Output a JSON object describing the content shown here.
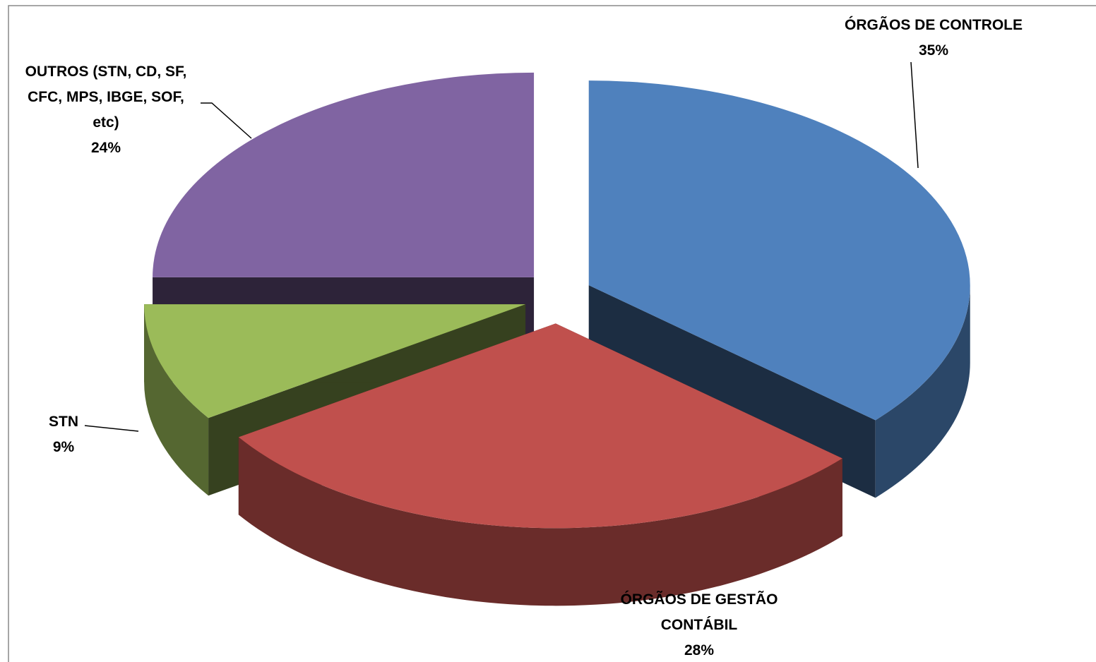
{
  "chart_data": {
    "type": "pie",
    "categories": [
      "ÓRGÃOS DE CONTROLE",
      "ÓRGÃOS DE GESTÃO CONTÁBIL",
      "STN",
      "OUTROS (STN, CD, SF, CFC, MPS, IBGE, SOF, etc)"
    ],
    "values": [
      35,
      28,
      9,
      24
    ],
    "value_labels": [
      "35%",
      "28%",
      "9%",
      "24%"
    ],
    "colors": [
      "#4f81bd",
      "#c0504d",
      "#9bbb59",
      "#8064a2"
    ]
  }
}
